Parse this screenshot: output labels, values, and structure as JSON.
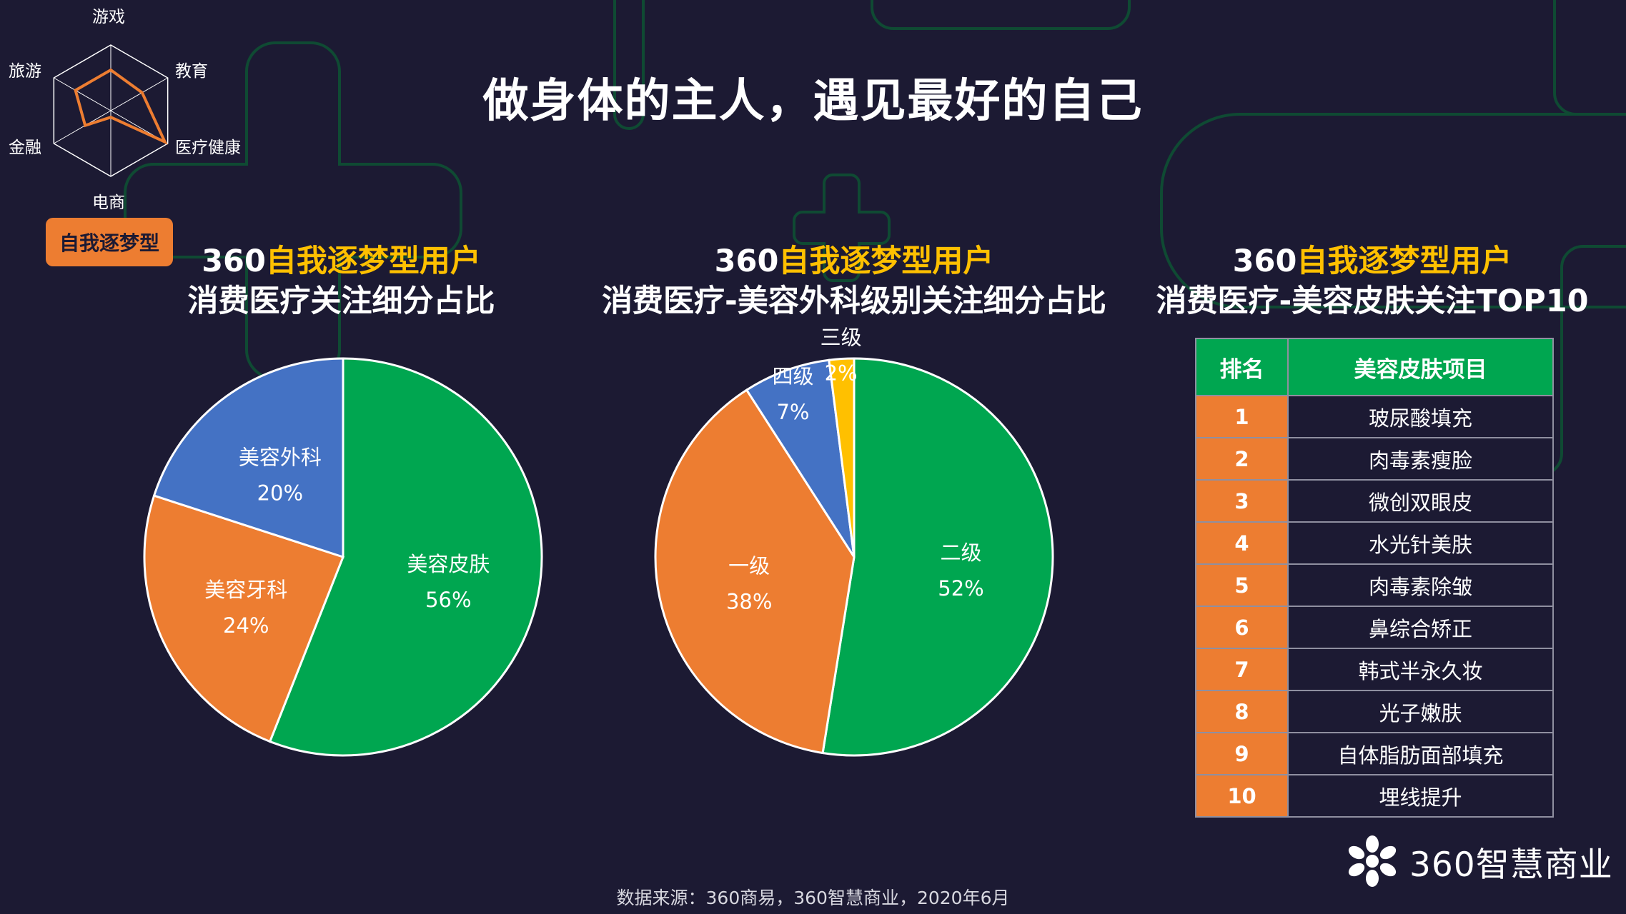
{
  "page": {
    "title": "做身体的主人，遇见最好的自己",
    "source": "数据来源：360商易，360智慧商业，2020年6月",
    "logo_text": "360智慧商业",
    "segment_badge": "自我逐梦型"
  },
  "radar": {
    "labels": [
      "游戏",
      "教育",
      "医疗健康",
      "电商",
      "金融",
      "旅游"
    ],
    "values": [
      0.62,
      0.55,
      0.95,
      0.1,
      0.45,
      0.62
    ],
    "color": "#ed7d31"
  },
  "colors": {
    "background": "#1c1a33",
    "green": "#00a650",
    "orange": "#ed7d31",
    "blue": "#4472c4",
    "yellow": "#ffc000",
    "accent_title": "#ffc000"
  },
  "chart_data": [
    {
      "type": "pie",
      "title_accent": "360自我逐梦型用户",
      "title_main": "消费医疗关注细分占比",
      "slices": [
        {
          "label": "美容皮肤",
          "value": 56,
          "display": "56%",
          "color": "#00a650"
        },
        {
          "label": "美容牙科",
          "value": 24,
          "display": "24%",
          "color": "#ed7d31"
        },
        {
          "label": "美容外科",
          "value": 20,
          "display": "20%",
          "color": "#4472c4"
        }
      ]
    },
    {
      "type": "pie",
      "title_accent": "360自我逐梦型用户",
      "title_main": "消费医疗-美容外科级别关注细分占比",
      "slices": [
        {
          "label": "二级",
          "value": 52,
          "display": "52%",
          "color": "#00a650"
        },
        {
          "label": "一级",
          "value": 38,
          "display": "38%",
          "color": "#ed7d31"
        },
        {
          "label": "四级",
          "value": 7,
          "display": "7%",
          "color": "#4472c4"
        },
        {
          "label": "三级",
          "value": 2,
          "display": "2%",
          "color": "#ffc000"
        }
      ]
    },
    {
      "type": "table",
      "title_accent": "360自我逐梦型用户",
      "title_main": "消费医疗-美容皮肤关注TOP10",
      "columns": [
        "排名",
        "美容皮肤项目"
      ],
      "rows": [
        [
          "1",
          "玻尿酸填充"
        ],
        [
          "2",
          "肉毒素瘦脸"
        ],
        [
          "3",
          "微创双眼皮"
        ],
        [
          "4",
          "水光针美肤"
        ],
        [
          "5",
          "肉毒素除皱"
        ],
        [
          "6",
          "鼻综合矫正"
        ],
        [
          "7",
          "韩式半永久妆"
        ],
        [
          "8",
          "光子嫩肤"
        ],
        [
          "9",
          "自体脂肪面部填充"
        ],
        [
          "10",
          "埋线提升"
        ]
      ]
    }
  ]
}
